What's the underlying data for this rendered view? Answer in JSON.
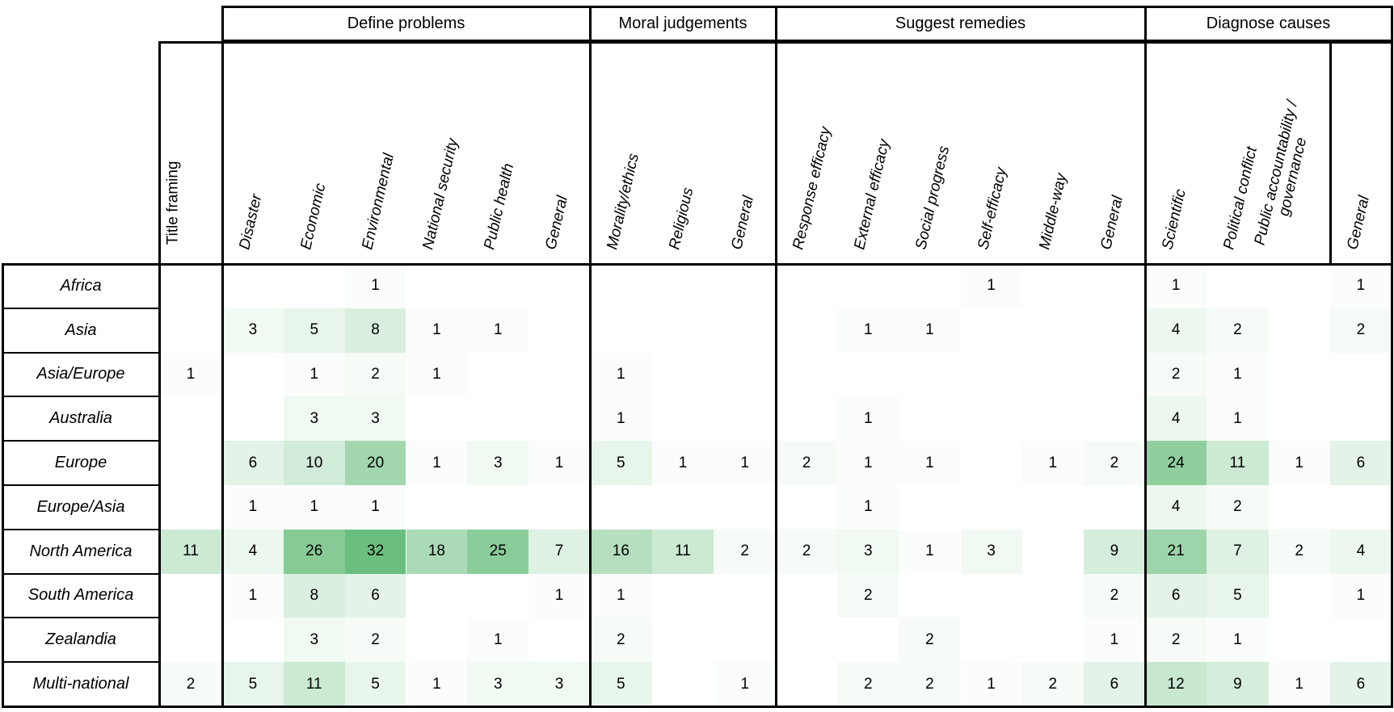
{
  "chart_data": {
    "type": "heatmap",
    "title": "",
    "standalone_column_label": "Title framing",
    "column_groups": [
      {
        "label": "Define problems",
        "columns": [
          "Disaster",
          "Economic",
          "Environmental",
          "National security",
          "Public health",
          "General"
        ]
      },
      {
        "label": "Moral judgements",
        "columns": [
          "Morality/ethics",
          "Religious",
          "General"
        ]
      },
      {
        "label": "Suggest remedies",
        "columns": [
          "Response efficacy",
          "External efficacy",
          "Social progress",
          "Self-efficacy",
          "Middle-way",
          "General"
        ]
      },
      {
        "label": "Diagnose causes",
        "columns": [
          "Scientific",
          "Political conflict",
          "Public accountability / governance",
          "General"
        ]
      }
    ],
    "rows": [
      "Africa",
      "Asia",
      "Asia/Europe",
      "Australia",
      "Europe",
      "Europe/Asia",
      "North America",
      "South America",
      "Zealandia",
      "Multi-national"
    ],
    "values": [
      [
        0,
        0,
        0,
        1,
        0,
        0,
        0,
        0,
        0,
        0,
        0,
        0,
        0,
        1,
        0,
        0,
        1,
        0,
        0,
        1
      ],
      [
        0,
        3,
        5,
        8,
        1,
        1,
        0,
        0,
        0,
        0,
        0,
        1,
        1,
        0,
        0,
        0,
        4,
        2,
        0,
        2
      ],
      [
        1,
        0,
        1,
        2,
        1,
        0,
        0,
        1,
        0,
        0,
        0,
        0,
        0,
        0,
        0,
        0,
        2,
        1,
        0,
        0
      ],
      [
        0,
        0,
        3,
        3,
        0,
        0,
        0,
        1,
        0,
        0,
        0,
        1,
        0,
        0,
        0,
        0,
        4,
        1,
        0,
        0
      ],
      [
        0,
        6,
        10,
        20,
        1,
        3,
        1,
        5,
        1,
        1,
        2,
        1,
        1,
        0,
        1,
        2,
        24,
        11,
        1,
        6
      ],
      [
        0,
        1,
        1,
        1,
        0,
        0,
        0,
        0,
        0,
        0,
        0,
        1,
        0,
        0,
        0,
        0,
        4,
        2,
        0,
        0
      ],
      [
        11,
        4,
        26,
        32,
        18,
        25,
        7,
        16,
        11,
        2,
        2,
        3,
        1,
        3,
        0,
        9,
        21,
        7,
        2,
        4
      ],
      [
        0,
        1,
        8,
        6,
        0,
        0,
        1,
        1,
        0,
        0,
        0,
        2,
        0,
        0,
        0,
        2,
        6,
        5,
        0,
        1
      ],
      [
        0,
        0,
        3,
        2,
        0,
        1,
        0,
        2,
        0,
        0,
        0,
        0,
        2,
        0,
        0,
        1,
        2,
        1,
        0,
        0
      ],
      [
        2,
        5,
        11,
        5,
        1,
        3,
        3,
        5,
        0,
        1,
        0,
        2,
        2,
        1,
        2,
        6,
        12,
        9,
        1,
        6
      ]
    ],
    "max_value": 32,
    "high_color": "#6abf7e",
    "low_color": "#ffffff",
    "border_color": "#000000",
    "legend_position": "none",
    "grid": "group-borders-only"
  }
}
